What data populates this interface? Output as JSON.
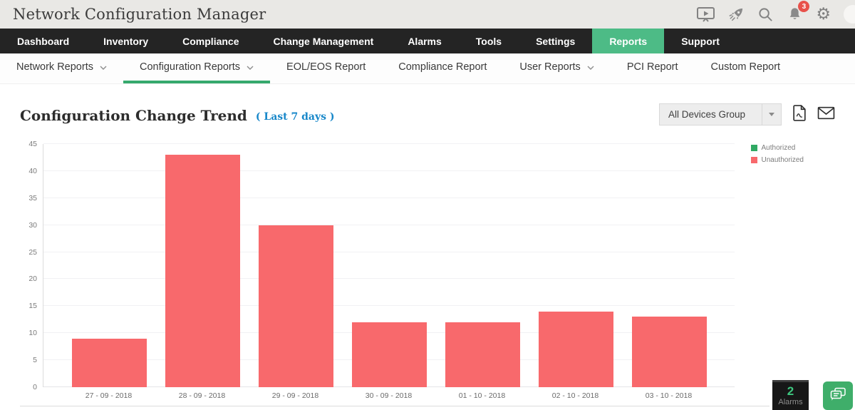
{
  "header": {
    "title": "Network Configuration Manager",
    "notification_count": "3",
    "icons": {
      "demo": "presentation-play-icon",
      "getting_started": "rocket-icon",
      "search": "search-icon",
      "notifications": "bell-icon",
      "settings": "gear-icon"
    }
  },
  "nav": {
    "items": [
      {
        "label": "Dashboard",
        "active": false
      },
      {
        "label": "Inventory",
        "active": false
      },
      {
        "label": "Compliance",
        "active": false
      },
      {
        "label": "Change Management",
        "active": false
      },
      {
        "label": "Alarms",
        "active": false
      },
      {
        "label": "Tools",
        "active": false
      },
      {
        "label": "Settings",
        "active": false
      },
      {
        "label": "Reports",
        "active": true
      },
      {
        "label": "Support",
        "active": false
      }
    ]
  },
  "subnav": {
    "items": [
      {
        "label": "Network Reports",
        "has_dropdown": true,
        "active": false
      },
      {
        "label": "Configuration Reports",
        "has_dropdown": true,
        "active": true
      },
      {
        "label": "EOL/EOS Report",
        "has_dropdown": false,
        "active": false
      },
      {
        "label": "Compliance Report",
        "has_dropdown": false,
        "active": false
      },
      {
        "label": "User Reports",
        "has_dropdown": true,
        "active": false
      },
      {
        "label": "PCI Report",
        "has_dropdown": false,
        "active": false
      },
      {
        "label": "Custom Report",
        "has_dropdown": false,
        "active": false
      }
    ]
  },
  "page": {
    "title": "Configuration Change Trend",
    "period_label": "( Last 7 days )",
    "device_group": "All Devices Group"
  },
  "chart_data": {
    "type": "bar",
    "title": "Configuration Change Trend (Last 7 days)",
    "categories": [
      "27 - 09 - 2018",
      "28 - 09 - 2018",
      "29 - 09 - 2018",
      "30 - 09 - 2018",
      "01 - 10 - 2018",
      "02 - 10 - 2018",
      "03 - 10 - 2018"
    ],
    "series": [
      {
        "name": "Authorized",
        "color": "#30a963",
        "values": [
          0,
          0,
          0,
          0,
          0,
          0,
          0
        ]
      },
      {
        "name": "Unauthorized",
        "color": "#f8696c",
        "values": [
          9,
          43,
          30,
          12,
          12,
          14,
          13
        ]
      }
    ],
    "xlabel": "",
    "ylabel": "",
    "ylim": [
      0,
      45
    ],
    "ytick_step": 5,
    "grid": true,
    "legend_position": "top-right"
  },
  "widgets": {
    "alarms_count": "2",
    "alarms_label": "Alarms"
  },
  "colors": {
    "accent_green": "#4dbb86",
    "underline_green": "#36a96d",
    "link_blue": "#1787c9",
    "bar_red": "#f8696c",
    "legend_green": "#30a963",
    "badge_red": "#e8514a",
    "nav_black": "#242424",
    "header_gray": "#e9e8e5"
  }
}
